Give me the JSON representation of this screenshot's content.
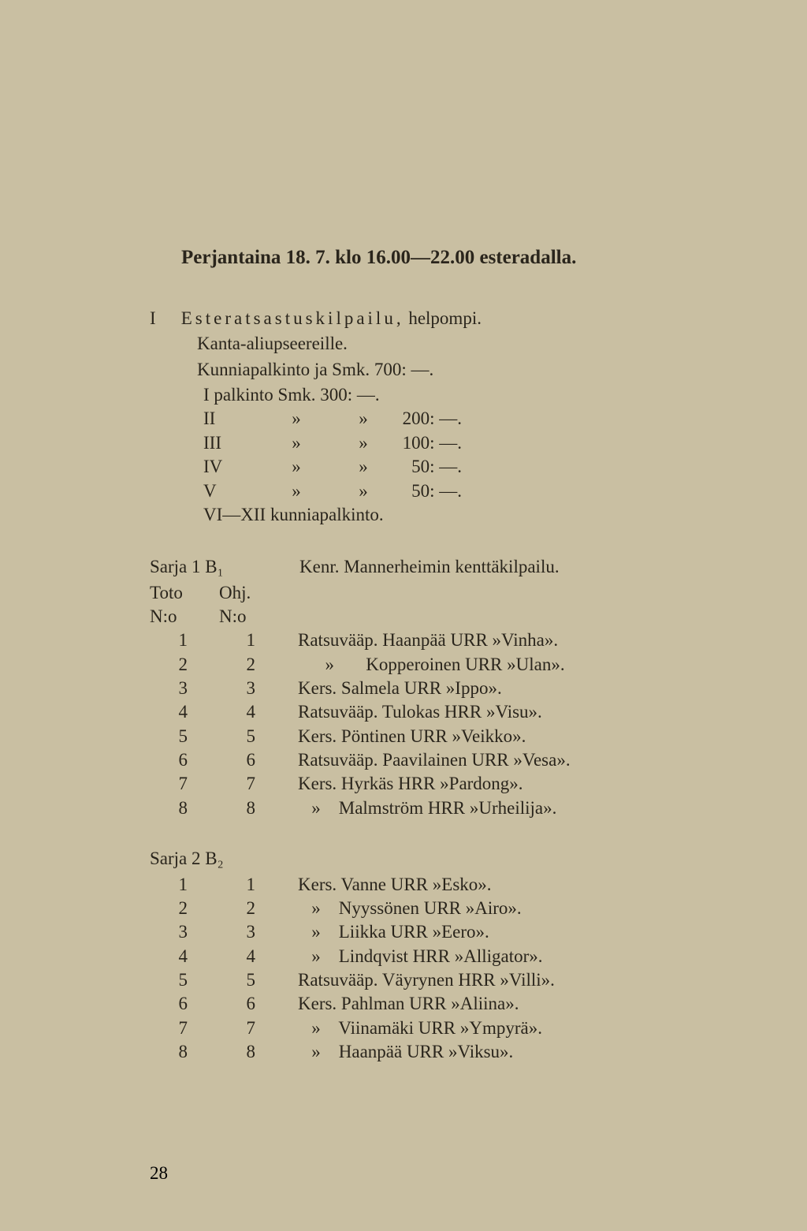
{
  "title": "Perjantaina 18. 7. klo 16.00—22.00 esteradalla.",
  "intro": {
    "label": "I",
    "word": "Esteratsastuskilpailu,",
    "after": " helpompi.",
    "line2": "Kanta-aliupseereille.",
    "line3": "Kunniapalkinto ja Smk. 700: —."
  },
  "prizes": {
    "first_line": "I palkinto Smk. 300: —.",
    "rows": [
      {
        "num": "II",
        "q1": "»",
        "q2": "»",
        "val": "200: —."
      },
      {
        "num": "III",
        "q1": "»",
        "q2": "»",
        "val": "100: —."
      },
      {
        "num": "IV",
        "q1": "»",
        "q2": "»",
        "val": "50: —."
      },
      {
        "num": "V",
        "q1": "»",
        "q2": "»",
        "val": "50: —."
      }
    ],
    "last": "VI—XII kunniapalkinto."
  },
  "sarja1": {
    "left": "Sarja 1 B₁",
    "right": "Kenr. Mannerheimin kenttäkilpailu.",
    "head1a": "Toto",
    "head1b": "N:o",
    "head2a": "Ohj.",
    "head2b": "N:o",
    "rows": [
      {
        "a": "1",
        "b": "1",
        "c": "Ratsuvääp. Haanpää URR »Vinha»."
      },
      {
        "a": "2",
        "b": "2",
        "c": "      »       Kopperoinen URR »Ulan»."
      },
      {
        "a": "3",
        "b": "3",
        "c": "Kers. Salmela URR »Ippo»."
      },
      {
        "a": "4",
        "b": "4",
        "c": "Ratsuvääp. Tulokas HRR »Visu»."
      },
      {
        "a": "5",
        "b": "5",
        "c": "Kers. Pöntinen URR »Veikko»."
      },
      {
        "a": "6",
        "b": "6",
        "c": "Ratsuvääp. Paavilainen URR »Vesa»."
      },
      {
        "a": "7",
        "b": "7",
        "c": "Kers. Hyrkäs HRR »Pardong»."
      },
      {
        "a": "8",
        "b": "8",
        "c": "   »    Malmström HRR »Urheilija»."
      }
    ]
  },
  "sarja2": {
    "left": "Sarja 2 B₂",
    "rows": [
      {
        "a": "1",
        "b": "1",
        "c": "Kers. Vanne URR »Esko»."
      },
      {
        "a": "2",
        "b": "2",
        "c": "   »    Nyyssönen URR »Airo»."
      },
      {
        "a": "3",
        "b": "3",
        "c": "   »    Liikka URR »Eero»."
      },
      {
        "a": "4",
        "b": "4",
        "c": "   »    Lindqvist HRR »Alligator»."
      },
      {
        "a": "5",
        "b": "5",
        "c": "Ratsuvääp. Väyrynen HRR »Villi»."
      },
      {
        "a": "6",
        "b": "6",
        "c": "Kers. Pahlman URR »Aliina»."
      },
      {
        "a": "7",
        "b": "7",
        "c": "   »    Viinamäki URR »Ympyrä»."
      },
      {
        "a": "8",
        "b": "8",
        "c": "   »    Haanpää URR »Viksu»."
      }
    ]
  },
  "pagenum": "28"
}
